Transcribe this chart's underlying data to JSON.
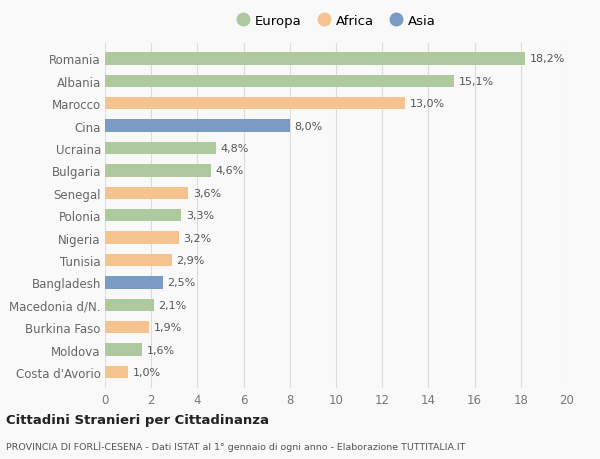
{
  "countries": [
    "Romania",
    "Albania",
    "Marocco",
    "Cina",
    "Ucraina",
    "Bulgaria",
    "Senegal",
    "Polonia",
    "Nigeria",
    "Tunisia",
    "Bangladesh",
    "Macedonia d/N.",
    "Burkina Faso",
    "Moldova",
    "Costa d'Avorio"
  ],
  "values": [
    18.2,
    15.1,
    13.0,
    8.0,
    4.8,
    4.6,
    3.6,
    3.3,
    3.2,
    2.9,
    2.5,
    2.1,
    1.9,
    1.6,
    1.0
  ],
  "labels": [
    "18,2%",
    "15,1%",
    "13,0%",
    "8,0%",
    "4,8%",
    "4,6%",
    "3,6%",
    "3,3%",
    "3,2%",
    "2,9%",
    "2,5%",
    "2,1%",
    "1,9%",
    "1,6%",
    "1,0%"
  ],
  "continents": [
    "Europa",
    "Europa",
    "Africa",
    "Asia",
    "Europa",
    "Europa",
    "Africa",
    "Europa",
    "Africa",
    "Africa",
    "Asia",
    "Europa",
    "Africa",
    "Europa",
    "Africa"
  ],
  "colors": {
    "Europa": "#aec99e",
    "Africa": "#f5c48e",
    "Asia": "#7a9bc4"
  },
  "legend_order": [
    "Europa",
    "Africa",
    "Asia"
  ],
  "xlim": [
    0,
    20
  ],
  "xticks": [
    0,
    2,
    4,
    6,
    8,
    10,
    12,
    14,
    16,
    18,
    20
  ],
  "title": "Cittadini Stranieri per Cittadinanza",
  "subtitle": "PROVINCIA DI FORLÌ-CESENA - Dati ISTAT al 1° gennaio di ogni anno - Elaborazione TUTTITALIA.IT",
  "bg_color": "#f9f9f9",
  "grid_color": "#dddddd",
  "bar_height": 0.55,
  "label_fontsize": 8.0,
  "ytick_fontsize": 8.5,
  "xtick_fontsize": 8.5,
  "legend_fontsize": 9.5
}
